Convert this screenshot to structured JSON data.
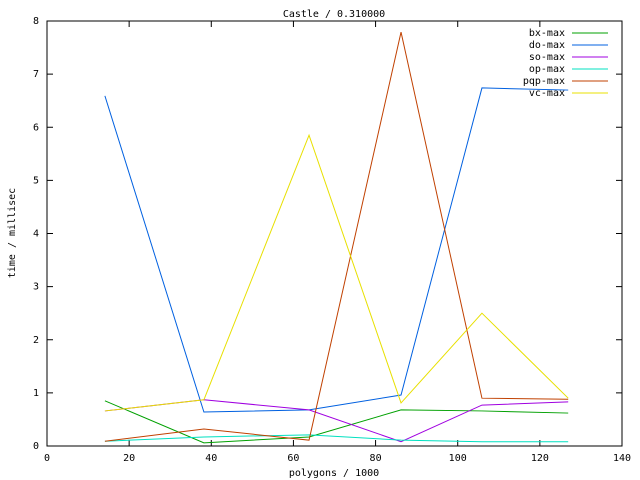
{
  "chart_data": {
    "type": "line",
    "title": "Castle / 0.310000",
    "x_label": "polygons / 1000",
    "y_label": "time / millisec",
    "x": [
      14.1,
      38.2,
      63.8,
      86.2,
      105.9,
      126.9
    ],
    "series": [
      {
        "name": "bx-max",
        "color": "#00a000",
        "values": [
          0.85,
          0.06,
          0.17,
          0.68,
          0.66,
          0.62
        ]
      },
      {
        "name": "do-max",
        "color": "#0060e0",
        "values": [
          6.59,
          0.64,
          0.68,
          0.96,
          6.74,
          6.7
        ]
      },
      {
        "name": "so-max",
        "color": "#a000e0",
        "values": [
          0.66,
          0.87,
          0.68,
          0.08,
          0.77,
          0.83
        ]
      },
      {
        "name": "op-max",
        "color": "#00e0c0",
        "values": [
          0.09,
          0.17,
          0.21,
          0.11,
          0.08,
          0.08
        ]
      },
      {
        "name": "pqp-max",
        "color": "#c04000",
        "values": [
          0.09,
          0.32,
          0.11,
          7.79,
          0.9,
          0.88
        ]
      },
      {
        "name": "vc-max",
        "color": "#e8e000",
        "values": [
          0.66,
          0.87,
          5.85,
          0.81,
          2.5,
          0.9
        ]
      }
    ],
    "xlim": [
      0,
      140
    ],
    "xticks": [
      0,
      20,
      40,
      60,
      80,
      100,
      120,
      140
    ],
    "ylim": [
      0,
      8
    ],
    "yticks": [
      0,
      1,
      2,
      3,
      4,
      5,
      6,
      7,
      8
    ],
    "grid": false,
    "legend": "top-right"
  }
}
